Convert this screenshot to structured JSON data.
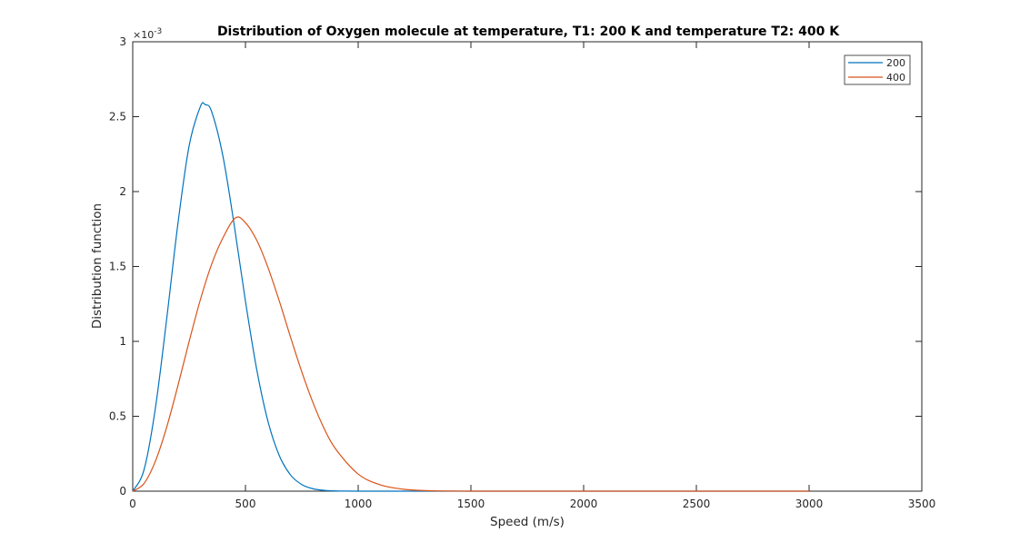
{
  "chart_data": {
    "type": "line",
    "title": "Distribution of Oxygen molecule at temperature, T1: 200 K and temperature T2: 400 K",
    "xlabel": "Speed (m/s)",
    "ylabel": "Distribution function",
    "xlim": [
      0,
      3500
    ],
    "ylim": [
      0,
      0.003
    ],
    "xticks": [
      0,
      500,
      1000,
      1500,
      2000,
      2500,
      3000,
      3500
    ],
    "xtick_labels": [
      "0",
      "500",
      "1000",
      "1500",
      "2000",
      "2500",
      "3000",
      "3500"
    ],
    "yticks": [
      0,
      0.0005,
      0.001,
      0.0015,
      0.002,
      0.0025,
      0.003
    ],
    "ytick_labels": [
      "0",
      "0.5",
      "1",
      "1.5",
      "2",
      "2.5",
      "3"
    ],
    "y_exponent": {
      "base": "×10",
      "power": "-3"
    },
    "grid": false,
    "legend_position": "top-right",
    "series": [
      {
        "name": "200",
        "color": "#0072BD",
        "x": [
          0,
          50,
          100,
          150,
          200,
          250,
          300,
          322,
          350,
          400,
          450,
          500,
          550,
          600,
          650,
          700,
          750,
          800,
          850,
          900,
          1000,
          1100,
          1200,
          1300,
          1400,
          1500,
          2000,
          2500,
          3000
        ],
        "y": [
          0,
          0.000142,
          0.000549,
          0.001142,
          0.001781,
          0.002304,
          0.002567,
          0.00258,
          0.002534,
          0.002237,
          0.001777,
          0.001268,
          0.000812,
          0.000465,
          0.000238,
          0.000108,
          4.4e-05,
          1.6e-05,
          5.2e-06,
          1.5e-06,
          1e-07,
          0,
          0,
          0,
          0,
          0,
          0,
          0,
          0
        ]
      },
      {
        "name": "400",
        "color": "#D95319",
        "x": [
          0,
          50,
          100,
          150,
          200,
          250,
          300,
          350,
          400,
          456,
          500,
          550,
          600,
          650,
          700,
          750,
          800,
          850,
          900,
          1000,
          1100,
          1200,
          1300,
          1400,
          1500,
          2000,
          2500,
          3000
        ],
        "y": [
          0,
          5.1e-05,
          0.000198,
          0.000424,
          0.000702,
          0.000998,
          0.001278,
          0.001515,
          0.001691,
          0.001825,
          0.001792,
          0.001675,
          0.001493,
          0.00127,
          0.001028,
          0.000796,
          0.000589,
          0.000415,
          0.000282,
          0.000114,
          4.1e-05,
          1.3e-05,
          3.6e-06,
          9e-07,
          2e-07,
          0,
          0,
          0
        ]
      }
    ]
  }
}
